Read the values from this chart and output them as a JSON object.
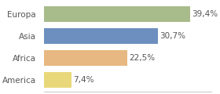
{
  "categories": [
    "America",
    "Africa",
    "Asia",
    "Europa"
  ],
  "values": [
    7.4,
    22.5,
    30.7,
    39.4
  ],
  "labels": [
    "7,4%",
    "22,5%",
    "30,7%",
    "39,4%"
  ],
  "bar_colors": [
    "#e8d87a",
    "#e8b882",
    "#6d8fbf",
    "#a8bb8a"
  ],
  "background_color": "#ffffff",
  "xlim": [
    0,
    45
  ],
  "label_fontsize": 7.5,
  "category_fontsize": 7.5
}
